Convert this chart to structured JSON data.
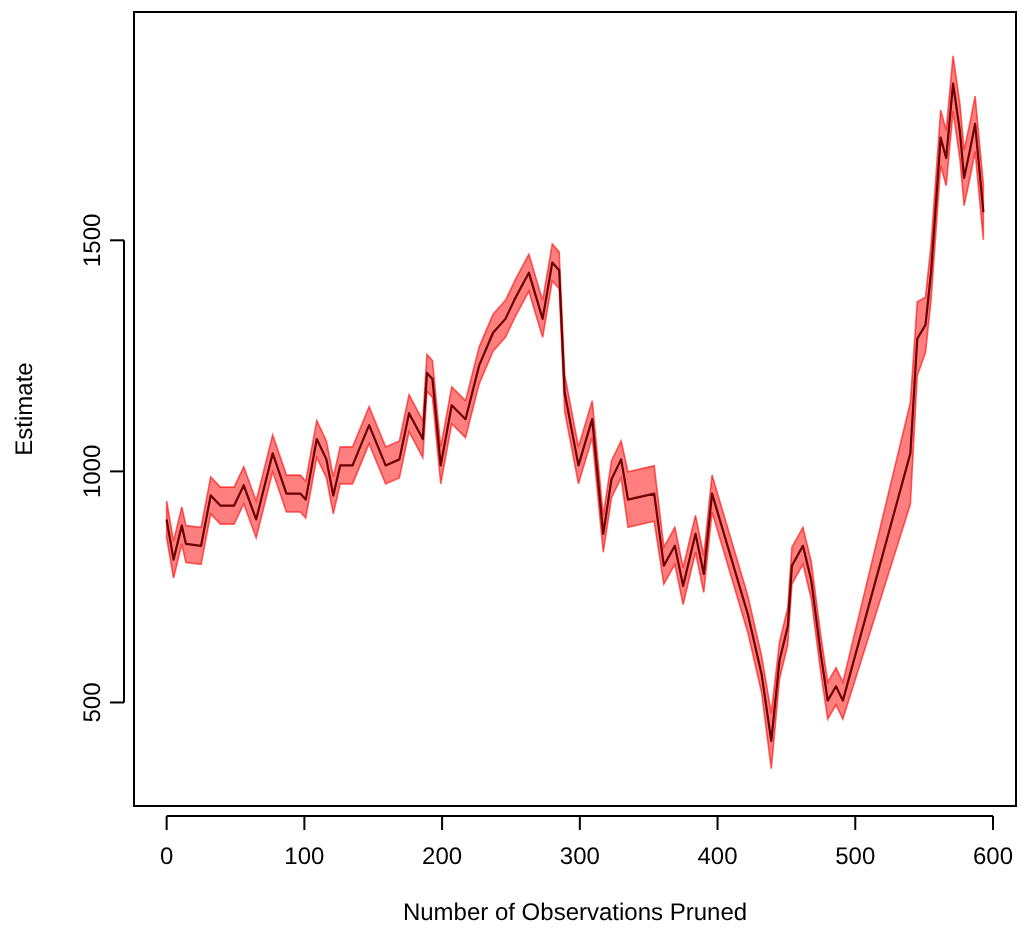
{
  "chart_data": {
    "type": "line",
    "xlabel": "Number of Observations Pruned",
    "ylabel": "Estimate",
    "xlim": [
      -23.7,
      616.7
    ],
    "ylim": [
      276,
      1994
    ],
    "xticks": [
      0,
      100,
      200,
      300,
      400,
      500,
      600
    ],
    "yticks": [
      500,
      1000,
      1500
    ],
    "grid": false,
    "marker": "none",
    "line_style": "solid",
    "series": [
      {
        "color": "#6b0000",
        "x": [
          0,
          5,
          11,
          14,
          25,
          32,
          39,
          49,
          56,
          65,
          77,
          87,
          97,
          101,
          109,
          116,
          121,
          126,
          135,
          147,
          159,
          169,
          176,
          186,
          189,
          193,
          199,
          207,
          217,
          227,
          237,
          246,
          253,
          263,
          273,
          280,
          285,
          289,
          299,
          309,
          317,
          323,
          330,
          335,
          354,
          361,
          369,
          375,
          384,
          390,
          396,
          422,
          432,
          439,
          445,
          451,
          454,
          462,
          468,
          475,
          480,
          486,
          491,
          540,
          545,
          551,
          555,
          562,
          566,
          571,
          576,
          579,
          583,
          587,
          593
        ],
        "values": [
          896,
          809,
          883,
          843,
          839,
          948,
          926,
          926,
          970,
          896,
          1039,
          952,
          952,
          939,
          1070,
          1026,
          948,
          1013,
          1013,
          1100,
          1013,
          1026,
          1126,
          1070,
          1213,
          1200,
          1013,
          1143,
          1113,
          1230,
          1300,
          1330,
          1374,
          1430,
          1330,
          1452,
          1435,
          1170,
          1013,
          1113,
          865,
          983,
          1026,
          939,
          952,
          796,
          839,
          752,
          865,
          778,
          952,
          691,
          561,
          417,
          591,
          665,
          796,
          839,
          765,
          604,
          504,
          535,
          504,
          1039,
          1287,
          1317,
          1430,
          1722,
          1678,
          1839,
          1735,
          1635,
          1691,
          1752,
          1561
        ],
        "lower": [
          856,
          769,
          843,
          803,
          799,
          908,
          886,
          886,
          930,
          856,
          999,
          912,
          912,
          899,
          1030,
          986,
          908,
          973,
          973,
          1060,
          973,
          986,
          1086,
          1030,
          1173,
          1160,
          973,
          1103,
          1073,
          1190,
          1260,
          1290,
          1334,
          1390,
          1290,
          1412,
          1395,
          1130,
          973,
          1073,
          825,
          943,
          986,
          879,
          892,
          756,
          799,
          712,
          825,
          738,
          912,
          651,
          521,
          357,
          551,
          625,
          756,
          799,
          725,
          564,
          464,
          495,
          464,
          929,
          1207,
          1257,
          1370,
          1662,
          1618,
          1779,
          1675,
          1575,
          1631,
          1692,
          1501
        ],
        "upper": [
          936,
          849,
          923,
          883,
          879,
          988,
          966,
          966,
          1010,
          936,
          1079,
          992,
          992,
          979,
          1110,
          1066,
          988,
          1053,
          1053,
          1140,
          1053,
          1066,
          1166,
          1110,
          1253,
          1240,
          1053,
          1183,
          1153,
          1270,
          1340,
          1370,
          1414,
          1470,
          1370,
          1492,
          1475,
          1210,
          1053,
          1153,
          905,
          1023,
          1066,
          999,
          1012,
          836,
          879,
          792,
          905,
          818,
          992,
          731,
          601,
          477,
          631,
          705,
          836,
          879,
          805,
          644,
          544,
          575,
          544,
          1149,
          1367,
          1377,
          1490,
          1782,
          1738,
          1899,
          1795,
          1695,
          1751,
          1812,
          1621
        ]
      }
    ]
  }
}
